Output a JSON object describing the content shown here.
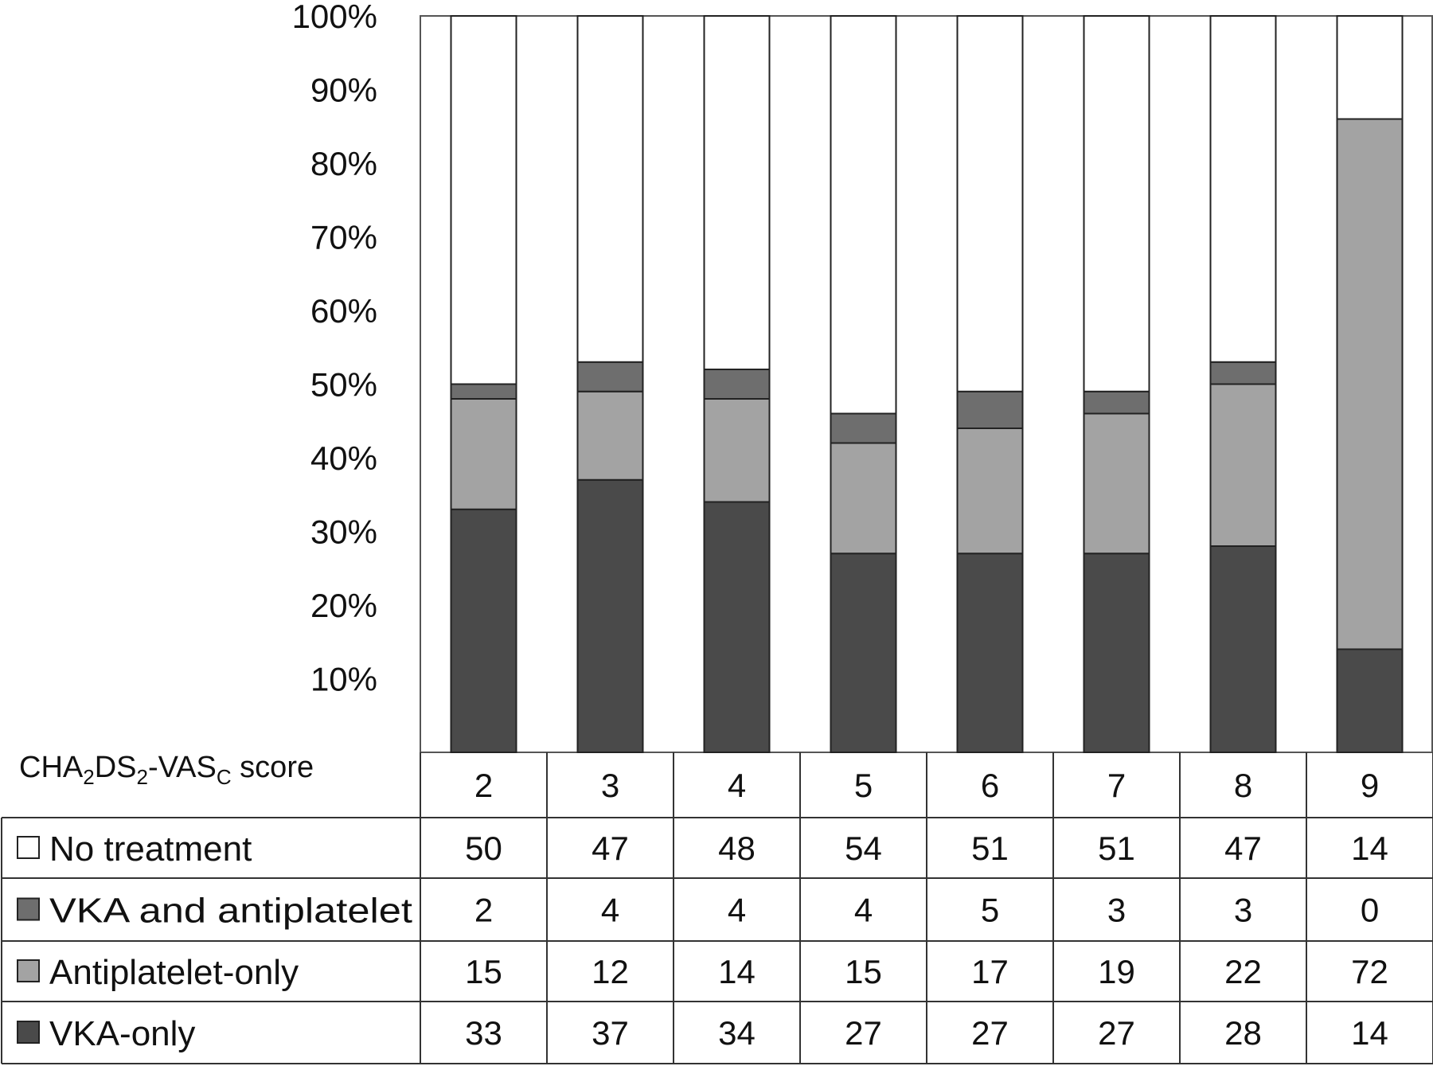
{
  "chart_data": {
    "type": "bar",
    "stacked": true,
    "percent": true,
    "xlabel_parts": [
      "CHA",
      "2",
      "DS",
      "2",
      "-VAS",
      "C",
      " score"
    ],
    "categories": [
      "2",
      "3",
      "4",
      "5",
      "6",
      "7",
      "8",
      "9"
    ],
    "yticks": [
      "10%",
      "20%",
      "30%",
      "40%",
      "50%",
      "60%",
      "70%",
      "80%",
      "90%",
      "100%"
    ],
    "ylim": [
      0,
      100
    ],
    "grid": false,
    "legend": "table-below",
    "series": [
      {
        "name": "VKA-only",
        "color": "#4a4a4a",
        "values": [
          33,
          37,
          34,
          27,
          27,
          27,
          28,
          14
        ]
      },
      {
        "name": "Antiplatelet-only",
        "color": "#a3a3a3",
        "values": [
          15,
          12,
          14,
          15,
          17,
          19,
          22,
          72
        ]
      },
      {
        "name": "VKA and antiplatelet",
        "color": "#6e6e6e",
        "values": [
          2,
          4,
          4,
          4,
          5,
          3,
          3,
          0
        ]
      },
      {
        "name": "No treatment",
        "color": "#ffffff",
        "values": [
          50,
          47,
          48,
          54,
          51,
          51,
          47,
          14
        ]
      }
    ],
    "table_rows": [
      {
        "name": "No treatment",
        "color": "#ffffff",
        "values": [
          "50",
          "47",
          "48",
          "54",
          "51",
          "51",
          "47",
          "14"
        ]
      },
      {
        "name": "VKA and antiplatelet",
        "color": "#6e6e6e",
        "values": [
          "2",
          "4",
          "4",
          "4",
          "5",
          "3",
          "3",
          "0"
        ]
      },
      {
        "name": "Antiplatelet-only",
        "color": "#a3a3a3",
        "values": [
          "15",
          "12",
          "14",
          "15",
          "17",
          "19",
          "22",
          "72"
        ]
      },
      {
        "name": "VKA-only",
        "color": "#4a4a4a",
        "values": [
          "33",
          "37",
          "34",
          "27",
          "27",
          "27",
          "28",
          "14"
        ]
      }
    ]
  }
}
